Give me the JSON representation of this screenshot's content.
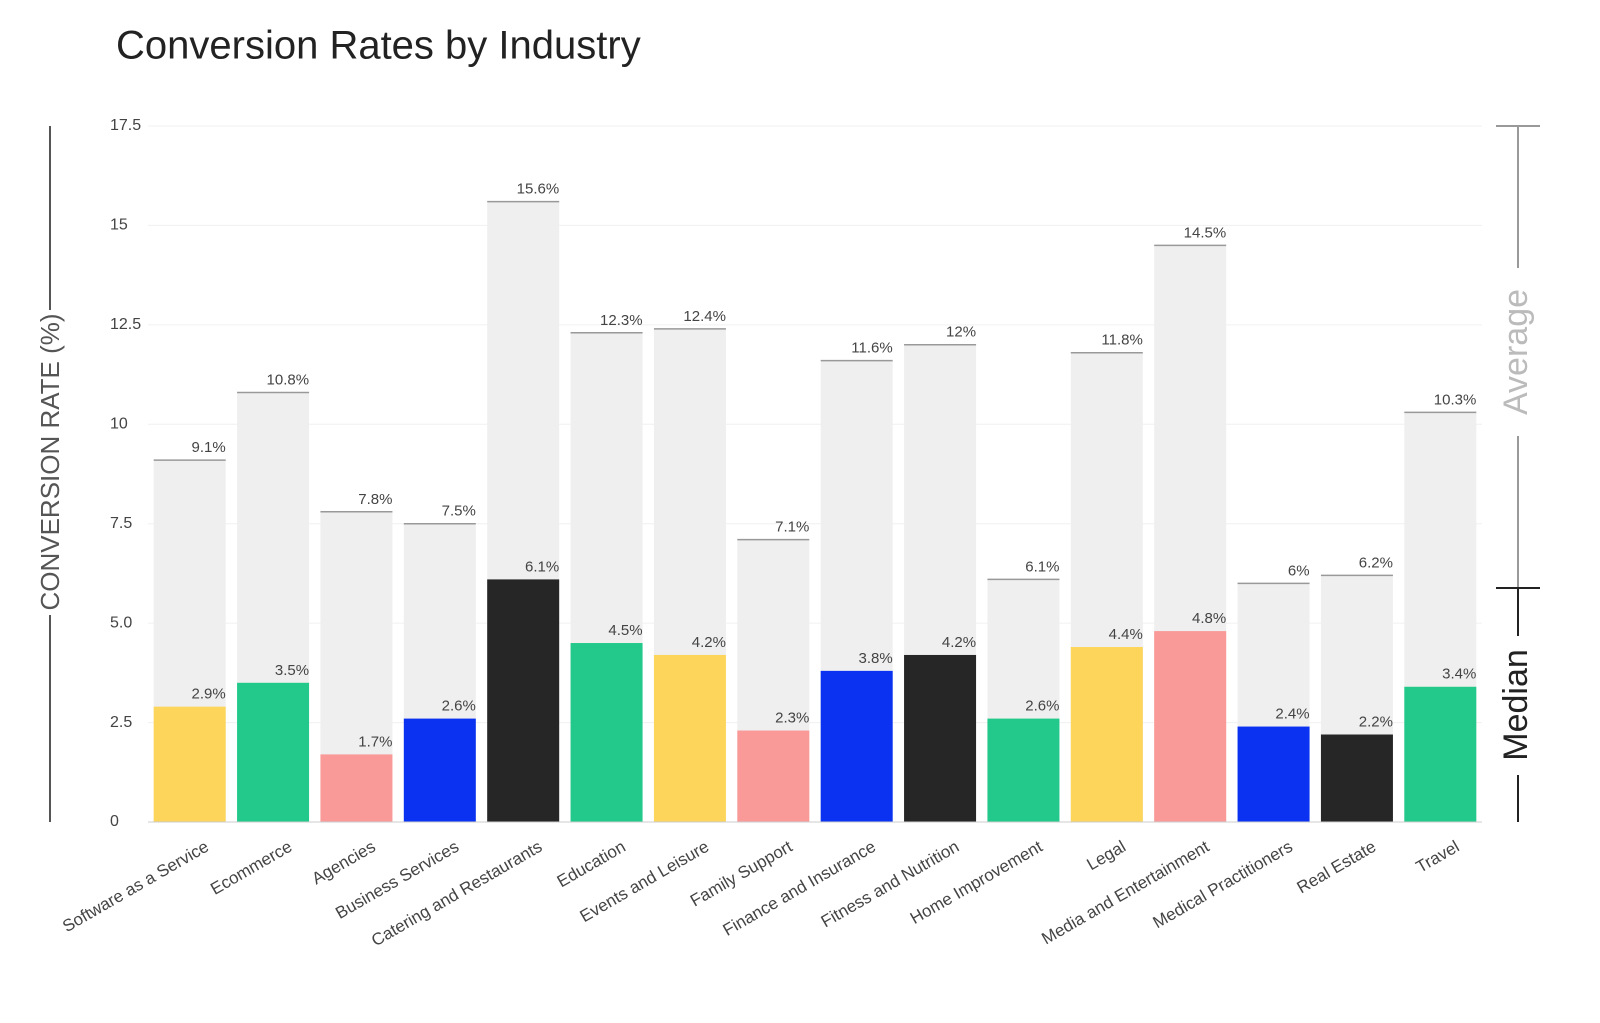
{
  "chart_data": {
    "type": "bar",
    "title": "Conversion Rates by Industry",
    "y_label": "CONVERSION RATE (%)",
    "categories": [
      "Software as a Service",
      "Ecommerce",
      "Agencies",
      "Business Services",
      "Catering and Restaurants",
      "Education",
      "Events and Leisure",
      "Family Support",
      "Finance and Insurance",
      "Fitness and Nutrition",
      "Home Improvement",
      "Legal",
      "Media and Entertainment",
      "Medical Practitioners",
      "Real Estate",
      "Travel"
    ],
    "series": [
      {
        "name": "Average",
        "color": "#efefef",
        "values": [
          9.1,
          10.8,
          7.8,
          7.5,
          15.6,
          12.3,
          12.4,
          7.1,
          11.6,
          12,
          6.1,
          11.8,
          14.5,
          6,
          6.2,
          10.3
        ],
        "value_labels": [
          "9.1%",
          "10.8%",
          "7.8%",
          "7.5%",
          "15.6%",
          "12.3%",
          "12.4%",
          "7.1%",
          "11.6%",
          "12%",
          "6.1%",
          "11.8%",
          "14.5%",
          "6%",
          "6.2%",
          "10.3%"
        ]
      },
      {
        "name": "Median",
        "color": "#262626",
        "colors": [
          "#fcd55a",
          "#22c98a",
          "#f99a98",
          "#0a32f0",
          "#262626",
          "#22c98a",
          "#fcd55a",
          "#f99a98",
          "#0a32f0",
          "#262626",
          "#22c98a",
          "#fcd55a",
          "#f99a98",
          "#0a32f0",
          "#262626",
          "#22c98a"
        ],
        "values": [
          2.9,
          3.5,
          1.7,
          2.6,
          6.1,
          4.5,
          4.2,
          2.3,
          3.8,
          4.2,
          2.6,
          4.4,
          4.8,
          2.4,
          2.2,
          3.4
        ],
        "value_labels": [
          "2.9%",
          "3.5%",
          "1.7%",
          "2.6%",
          "6.1%",
          "4.5%",
          "4.2%",
          "2.3%",
          "3.8%",
          "4.2%",
          "2.6%",
          "4.4%",
          "4.8%",
          "2.4%",
          "2.2%",
          "3.4%"
        ]
      }
    ],
    "ylim": [
      0,
      17.5
    ],
    "yticks": [
      0,
      2.5,
      {
        "value": 5,
        "label": "5.0"
      },
      7.5,
      10,
      12.5,
      15,
      17.5
    ],
    "grid": true
  }
}
